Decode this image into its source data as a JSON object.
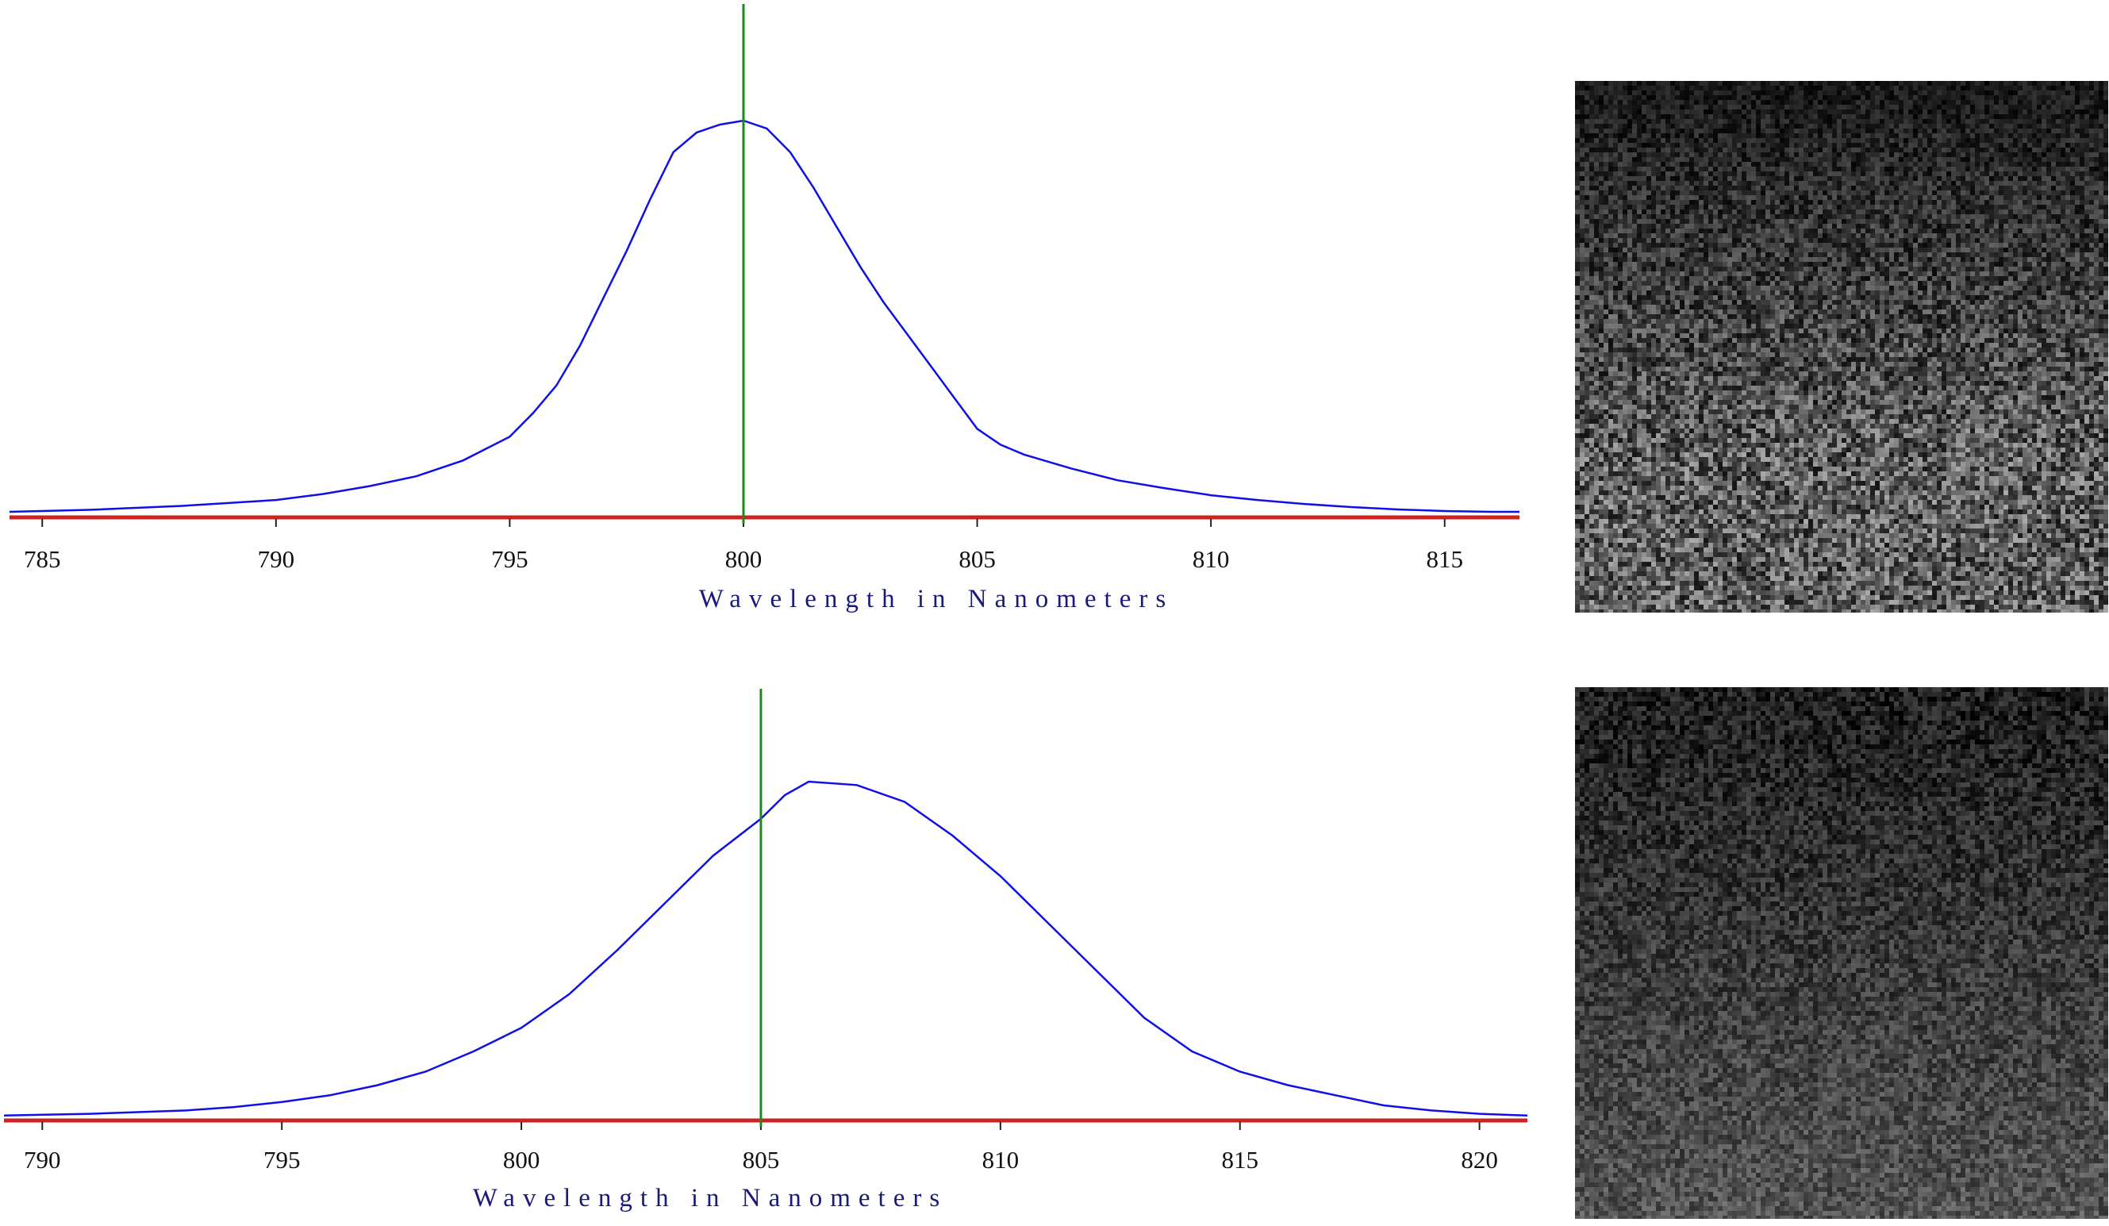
{
  "chart_data": [
    {
      "type": "line",
      "title": "",
      "xlabel": "Wavelength in Nanometers",
      "ylabel": "",
      "xlim": [
        784.3,
        816.6
      ],
      "ylim": [
        0,
        1
      ],
      "ticks": [
        "785",
        "790",
        "795",
        "800",
        "805",
        "810",
        "815"
      ],
      "colors": {
        "curve": "#1010e6",
        "marker": "#1a8a1a",
        "baseline": "#cc2222"
      },
      "marker_x": 800,
      "series": [
        {
          "x": [
            784.3,
            786,
            788,
            790,
            791,
            792,
            793,
            794,
            795,
            795.5,
            796,
            796.5,
            797,
            797.5,
            798,
            798.5,
            799,
            799.5,
            800,
            800.5,
            801,
            801.5,
            802,
            802.5,
            803,
            803.5,
            804,
            804.5,
            805,
            805.5,
            806,
            807,
            808,
            809,
            810,
            811,
            812,
            813,
            814,
            815,
            816,
            816.6
          ],
          "y": [
            0.01,
            0.015,
            0.025,
            0.04,
            0.055,
            0.075,
            0.1,
            0.14,
            0.2,
            0.26,
            0.33,
            0.43,
            0.55,
            0.67,
            0.8,
            0.92,
            0.97,
            0.99,
            1.0,
            0.98,
            0.92,
            0.83,
            0.73,
            0.63,
            0.54,
            0.46,
            0.38,
            0.3,
            0.22,
            0.18,
            0.155,
            0.12,
            0.09,
            0.07,
            0.052,
            0.04,
            0.03,
            0.022,
            0.016,
            0.012,
            0.01,
            0.01
          ]
        }
      ]
    },
    {
      "type": "line",
      "title": "",
      "xlabel": "Wavelength in Nanometers",
      "ylabel": "",
      "xlim": [
        789.2,
        821.0
      ],
      "ylim": [
        0,
        1
      ],
      "ticks": [
        "790",
        "795",
        "800",
        "805",
        "810",
        "815",
        "820"
      ],
      "colors": {
        "curve": "#1010e6",
        "marker": "#1a8a1a",
        "baseline": "#cc2222"
      },
      "marker_x": 805,
      "series": [
        {
          "x": [
            789.2,
            791,
            793,
            794,
            795,
            796,
            797,
            798,
            799,
            800,
            801,
            802,
            803,
            804,
            805,
            805.5,
            806,
            807,
            808,
            809,
            810,
            811,
            812,
            813,
            814,
            815,
            816,
            817,
            818,
            819,
            820,
            821
          ],
          "y": [
            0.01,
            0.015,
            0.025,
            0.035,
            0.05,
            0.07,
            0.1,
            0.14,
            0.2,
            0.27,
            0.37,
            0.5,
            0.64,
            0.78,
            0.89,
            0.96,
            1.0,
            0.99,
            0.94,
            0.84,
            0.72,
            0.58,
            0.44,
            0.3,
            0.2,
            0.14,
            0.1,
            0.07,
            0.04,
            0.025,
            0.015,
            0.01
          ]
        }
      ]
    }
  ],
  "images": [
    {
      "name": "fluorescence-image-top",
      "description_icon": "noise-image"
    },
    {
      "name": "fluorescence-image-bottom",
      "description_icon": "noise-image"
    }
  ]
}
